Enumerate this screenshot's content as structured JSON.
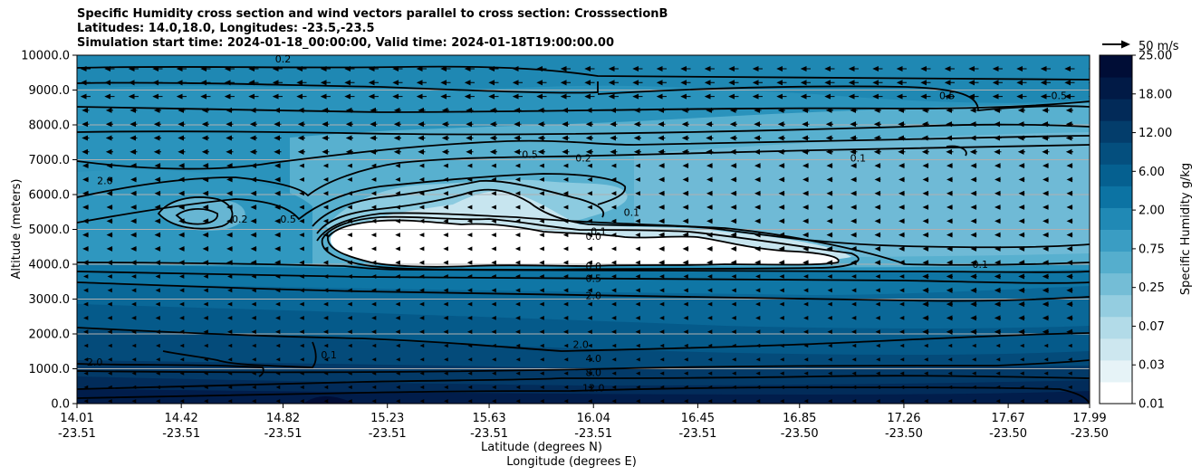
{
  "title_lines": [
    "Specific Humidity cross section and wind vectors parallel to cross section: CrosssectionB",
    "Latitudes: 14.0,18.0, Longitudes: -23.5,-23.5",
    "Simulation start time: 2024-01-18_00:00:00, Valid time: 2024-01-18T19:00:00.00"
  ],
  "chart_data": {
    "type": "heatmap",
    "subtype": "filled contour cross section with contour lines and wind vectors",
    "ylabel": "Altitude (meters)",
    "xlabel_lines": [
      "Latitude (degrees N)",
      "Longitude (degrees E)"
    ],
    "ylim": [
      0,
      10000
    ],
    "y_ticks": [
      "0.0",
      "1000.0",
      "2000.0",
      "3000.0",
      "4000.0",
      "5000.0",
      "6000.0",
      "7000.0",
      "8000.0",
      "9000.0",
      "10000.0"
    ],
    "x_ticks": [
      {
        "lat": "14.01",
        "lon": "-23.51"
      },
      {
        "lat": "14.42",
        "lon": "-23.51"
      },
      {
        "lat": "14.82",
        "lon": "-23.51"
      },
      {
        "lat": "15.23",
        "lon": "-23.51"
      },
      {
        "lat": "15.63",
        "lon": "-23.51"
      },
      {
        "lat": "16.04",
        "lon": "-23.51"
      },
      {
        "lat": "16.45",
        "lon": "-23.51"
      },
      {
        "lat": "16.85",
        "lon": "-23.50"
      },
      {
        "lat": "17.26",
        "lon": "-23.50"
      },
      {
        "lat": "17.67",
        "lon": "-23.50"
      },
      {
        "lat": "17.99",
        "lon": "-23.50"
      }
    ],
    "grid": "horizontal",
    "colorbar": {
      "label": "Specific Humidity g/kg",
      "levels": [
        "0.01",
        "0.03",
        "0.07",
        "0.25",
        "0.75",
        "2.00",
        "6.00",
        "12.00",
        "18.00",
        "25.00"
      ],
      "colors": [
        "#ffffff",
        "#e6f3f7",
        "#cde7ef",
        "#b2dbe8",
        "#94cde0",
        "#74bdd6",
        "#55aecd",
        "#3a9dc3",
        "#2089b5",
        "#0c73a3",
        "#056090",
        "#044f7e",
        "#033d6b",
        "#022a58",
        "#011a46",
        "#000d36"
      ]
    },
    "quiver_key": "50 m/s",
    "contour_labels": [
      {
        "text": "0.2",
        "lat": 14.82,
        "alt": 9900
      },
      {
        "text": "2.0",
        "lat": 14.12,
        "alt": 6400
      },
      {
        "text": "0.2",
        "lat": 14.65,
        "alt": 5300
      },
      {
        "text": "0.5",
        "lat": 14.84,
        "alt": 5300
      },
      {
        "text": "0.5",
        "lat": 15.79,
        "alt": 7150
      },
      {
        "text": "0.2",
        "lat": 16.0,
        "alt": 7050
      },
      {
        "text": "0.1",
        "lat": 16.19,
        "alt": 5500
      },
      {
        "text": "0.1",
        "lat": 16.06,
        "alt": 4950
      },
      {
        "text": "0.0",
        "lat": 16.04,
        "alt": 4800
      },
      {
        "text": "0.0",
        "lat": 16.04,
        "alt": 3950
      },
      {
        "text": "0.5",
        "lat": 16.04,
        "alt": 3600
      },
      {
        "text": "2.0",
        "lat": 16.04,
        "alt": 3100
      },
      {
        "text": "2.0",
        "lat": 15.99,
        "alt": 1700
      },
      {
        "text": "4.0",
        "lat": 16.04,
        "alt": 1300
      },
      {
        "text": "8.0",
        "lat": 16.04,
        "alt": 900
      },
      {
        "text": "12.0",
        "lat": 16.04,
        "alt": 450
      },
      {
        "text": "2.0",
        "lat": 14.08,
        "alt": 1200
      },
      {
        "text": "0.1",
        "lat": 15.0,
        "alt": 1400
      },
      {
        "text": "0.1",
        "lat": 17.08,
        "alt": 7050
      },
      {
        "text": "0.5",
        "lat": 17.43,
        "alt": 8850
      },
      {
        "text": "0.5",
        "lat": 17.87,
        "alt": 8850
      },
      {
        "text": "0.1",
        "lat": 17.56,
        "alt": 4000
      }
    ]
  }
}
